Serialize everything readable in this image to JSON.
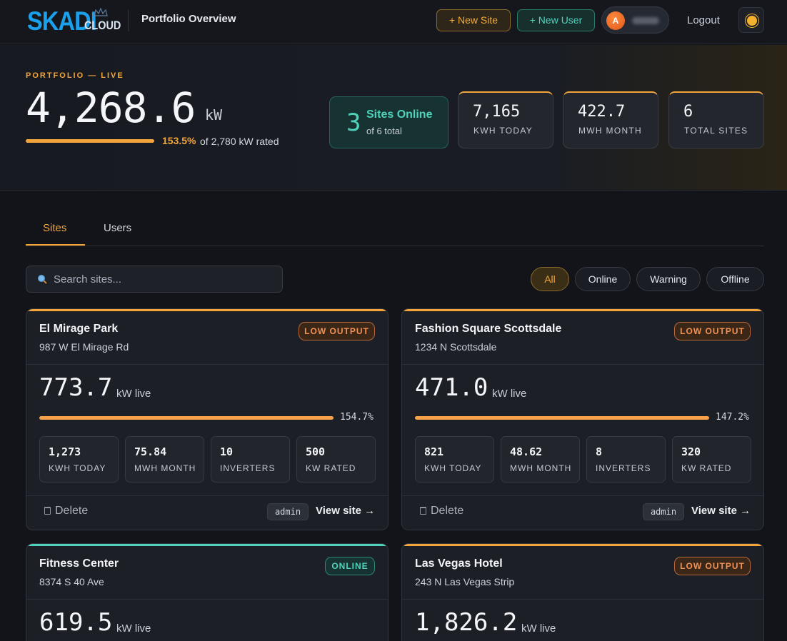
{
  "header": {
    "brand": "SKADI",
    "brand_sub": "CLOUD",
    "page_title": "Portfolio Overview",
    "new_site": "+ New Site",
    "new_user": "+ New User",
    "avatar_initial": "A",
    "logout": "Logout"
  },
  "hero": {
    "eyebrow": "PORTFOLIO — LIVE",
    "kw": "4,268.6",
    "unit": "kW",
    "pct": "153.5%",
    "progress": 1.0,
    "rated": "of 2,780 kW rated",
    "online_count": "3",
    "online_label": "Sites Online",
    "online_sub": "of 6 total",
    "stats": [
      {
        "value": "7,165",
        "label": "KWH TODAY"
      },
      {
        "value": "422.7",
        "label": "MWH MONTH"
      },
      {
        "value": "6",
        "label": "TOTAL SITES"
      }
    ]
  },
  "tabs": {
    "sites": "Sites",
    "users": "Users"
  },
  "search": {
    "placeholder": "Search sites...",
    "value": ""
  },
  "filters": [
    "All",
    "Online",
    "Warning",
    "Offline"
  ],
  "colors": {
    "accent": "#f3a53b",
    "online": "#4fd2bc",
    "low_output": "#f39152",
    "brand": "#1ba0ec"
  },
  "sites": [
    {
      "name": "El Mirage Park",
      "address": "987 W El Mirage Rd",
      "status": "LOW OUTPUT",
      "kw": "773.7",
      "kw_unit": "kW live",
      "pct": "154.7%",
      "progress": 1.0,
      "stats": [
        {
          "value": "1,273",
          "label": "KWH TODAY"
        },
        {
          "value": "75.84",
          "label": "MWH MONTH"
        },
        {
          "value": "10",
          "label": "INVERTERS"
        },
        {
          "value": "500",
          "label": "KW RATED"
        }
      ],
      "delete": "Delete",
      "owner": "admin",
      "view": "View site →"
    },
    {
      "name": "Fashion Square Scottsdale",
      "address": "1234 N Scottsdale",
      "status": "LOW OUTPUT",
      "kw": "471.0",
      "kw_unit": "kW live",
      "pct": "147.2%",
      "progress": 1.0,
      "stats": [
        {
          "value": "821",
          "label": "KWH TODAY"
        },
        {
          "value": "48.62",
          "label": "MWH MONTH"
        },
        {
          "value": "8",
          "label": "INVERTERS"
        },
        {
          "value": "320",
          "label": "KW RATED"
        }
      ],
      "delete": "Delete",
      "owner": "admin",
      "view": "View site →"
    },
    {
      "name": "Fitness Center",
      "address": "8374 S 40 Ave",
      "status": "ONLINE",
      "kw": "619.5",
      "kw_unit": "kW live"
    },
    {
      "name": "Las Vegas Hotel",
      "address": "243 N Las Vegas Strip",
      "status": "LOW OUTPUT",
      "kw": "1,826.2",
      "kw_unit": "kW live"
    }
  ]
}
